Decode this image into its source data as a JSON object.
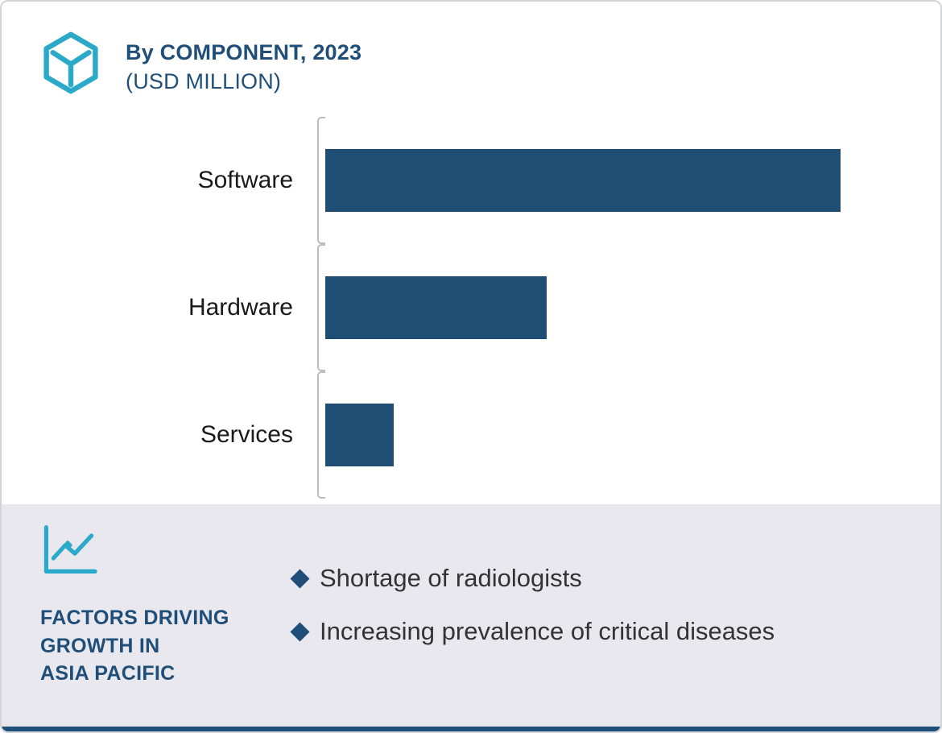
{
  "colors": {
    "navy": "#1F4E79",
    "teal": "#2BA9C9",
    "footer_bg": "#E8E8EE",
    "bar": "#1F4E74",
    "axis": "#B9BCC0",
    "border": "#D2D4D8",
    "bullet_text": "#333333"
  },
  "header": {
    "title": "By COMPONENT, 2023",
    "subtitle": "(USD MILLION)"
  },
  "chart_data": {
    "type": "bar",
    "orientation": "horizontal",
    "title": "By COMPONENT, 2023 (USD MILLION)",
    "categories": [
      "Software",
      "Hardware",
      "Services"
    ],
    "values": [
      640,
      275,
      85
    ],
    "value_note": "axis unlabeled; values are relative bar lengths estimated from the image",
    "xlabel": "",
    "ylabel": "",
    "xlim": [
      0,
      764
    ],
    "grid": false,
    "legend": false,
    "bar_color": "#1F4E74"
  },
  "footer": {
    "heading_lines": [
      "FACTORS DRIVING",
      "GROWTH IN",
      "ASIA PACIFIC"
    ],
    "bullets": [
      "Shortage of radiologists",
      "Increasing prevalence of critical diseases"
    ]
  }
}
